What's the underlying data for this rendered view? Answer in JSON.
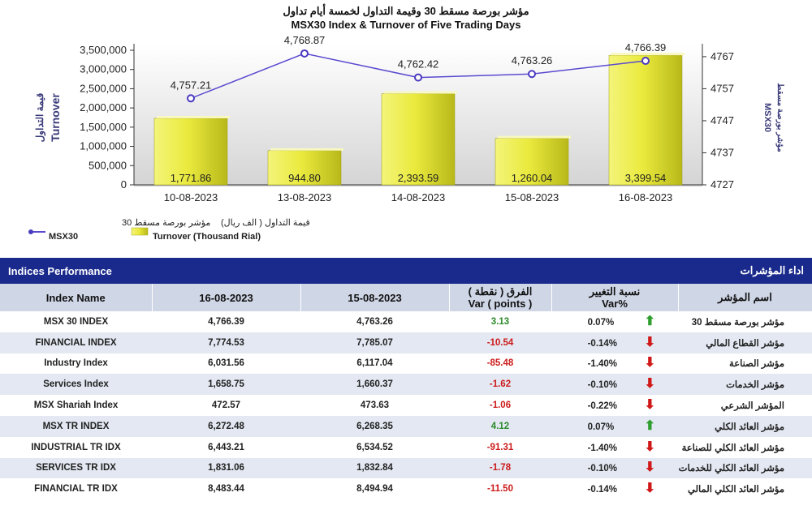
{
  "chart_data": {
    "type": "bar+line",
    "title_ar": "مؤشر بورصة مسقط 30 وقيمة التداول لخمسة أيام تداول",
    "title": "MSX30 Index & Turnover of Five Trading Days",
    "categories": [
      "10-08-2023",
      "13-08-2023",
      "14-08-2023",
      "15-08-2023",
      "16-08-2023"
    ],
    "bar_series": {
      "name": "Turnover (Thousand Rial)",
      "name_ar": "قيمة التداول ( الف ريال)",
      "values": [
        1771.86,
        944.8,
        2393.59,
        1260.04,
        3399.54
      ],
      "labels": [
        "1,771.86",
        "944.80",
        "2,393.59",
        "1,260.04",
        "3,399.54"
      ],
      "plot_values": [
        1730000,
        890000,
        2370000,
        1210000,
        3370000
      ]
    },
    "line_series": {
      "name": "MSX30",
      "name_ar": "مؤشر بورصة مسقط 30",
      "values": [
        4757.21,
        4768.87,
        4762.42,
        4763.26,
        4766.39
      ],
      "labels": [
        "4,757.21",
        "4,768.87",
        "4,762.42",
        "4,763.26",
        "4,766.39"
      ],
      "plot_values": [
        4754.0,
        4768.0,
        4760.5,
        4761.6,
        4765.7
      ]
    },
    "left_axis": {
      "title": "Turnover",
      "title_ar": "قيمة التداول",
      "ylim": [
        0,
        3500000
      ],
      "ticks": [
        0,
        500000,
        1000000,
        1500000,
        2000000,
        2500000,
        3000000,
        3500000
      ],
      "tick_labels": [
        "0",
        "500,000",
        "1,000,000",
        "1,500,000",
        "2,000,000",
        "2,500,000",
        "3,000,000",
        "3,500,000"
      ]
    },
    "right_axis": {
      "title": "MSX30",
      "title_ar": "مؤشر بورصة مسقط",
      "ylim": [
        4727,
        4769
      ],
      "ticks": [
        4727,
        4737,
        4747,
        4757,
        4767
      ],
      "tick_labels": [
        "4727",
        "4737",
        "4747",
        "4757",
        "4767"
      ]
    },
    "colors": {
      "bar": "#e8e84a",
      "line": "#5a4ad0",
      "marker": "#4a3ac0"
    }
  },
  "performance": {
    "title": "Indices Performance",
    "title_ar": "اداء المؤشرات",
    "headers": {
      "name": "Index Name",
      "d1": "16-08-2023",
      "d2": "15-08-2023",
      "diff_ar": "الفرق ( نقطة )",
      "diff": "Var ( points )",
      "pct_ar": "نسبة التغيير",
      "pct": "Var%",
      "name_ar": "اسم المؤشر"
    },
    "rows": [
      {
        "name": "MSX 30 INDEX",
        "d1": "4,766.39",
        "d2": "4,763.26",
        "diff": "3.13",
        "pct": "0.07%",
        "dir": "up",
        "name_ar": "مؤشر بورصة مسقط 30"
      },
      {
        "name": "FINANCIAL INDEX",
        "d1": "7,774.53",
        "d2": "7,785.07",
        "diff": "-10.54",
        "pct": "-0.14%",
        "dir": "down",
        "name_ar": "مؤشر القطاع المالي"
      },
      {
        "name": "Industry Index",
        "d1": "6,031.56",
        "d2": "6,117.04",
        "diff": "-85.48",
        "pct": "-1.40%",
        "dir": "down",
        "name_ar": "مؤشر الصناعة"
      },
      {
        "name": "Services Index",
        "d1": "1,658.75",
        "d2": "1,660.37",
        "diff": "-1.62",
        "pct": "-0.10%",
        "dir": "down",
        "name_ar": "مؤشر الخدمات"
      },
      {
        "name": "MSX Shariah Index",
        "d1": "472.57",
        "d2": "473.63",
        "diff": "-1.06",
        "pct": "-0.22%",
        "dir": "down",
        "name_ar": "المؤشر الشرعي"
      },
      {
        "name": "MSX TR INDEX",
        "d1": "6,272.48",
        "d2": "6,268.35",
        "diff": "4.12",
        "pct": "0.07%",
        "dir": "up",
        "name_ar": "مؤشر العائد الكلي"
      },
      {
        "name": "INDUSTRIAL TR IDX",
        "d1": "6,443.21",
        "d2": "6,534.52",
        "diff": "-91.31",
        "pct": "-1.40%",
        "dir": "down",
        "name_ar": "مؤشر العائد الكلي للصناعة"
      },
      {
        "name": "SERVICES TR IDX",
        "d1": "1,831.06",
        "d2": "1,832.84",
        "diff": "-1.78",
        "pct": "-0.10%",
        "dir": "down",
        "name_ar": "مؤشر العائد الكلي للخدمات"
      },
      {
        "name": "FINANCIAL TR IDX",
        "d1": "8,483.44",
        "d2": "8,494.94",
        "diff": "-11.50",
        "pct": "-0.14%",
        "dir": "down",
        "name_ar": "مؤشر العائد الكلي المالي"
      }
    ]
  }
}
